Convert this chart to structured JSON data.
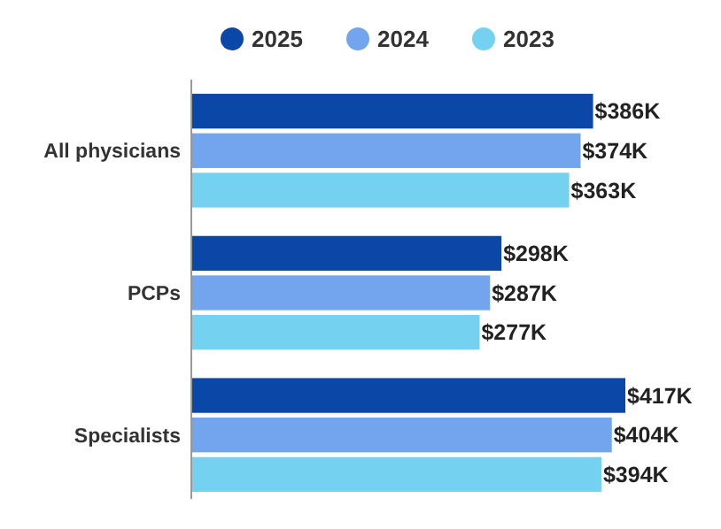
{
  "chart_data": {
    "type": "bar",
    "orientation": "horizontal",
    "categories": [
      "All physicians",
      "PCPs",
      "Specialists"
    ],
    "legend": "top",
    "series": [
      {
        "name": "2025",
        "color": "#0b47a6",
        "values": [
          386,
          298,
          417
        ],
        "value_labels": [
          "$386K",
          "$298K",
          "$417K"
        ]
      },
      {
        "name": "2024",
        "color": "#72a5ee",
        "values": [
          374,
          287,
          404
        ],
        "value_labels": [
          "$374K",
          "$287K",
          "$404K"
        ]
      },
      {
        "name": "2023",
        "color": "#74d2f0",
        "values": [
          363,
          277,
          394
        ],
        "value_labels": [
          "$363K",
          "$277K",
          "$394K"
        ]
      }
    ]
  }
}
